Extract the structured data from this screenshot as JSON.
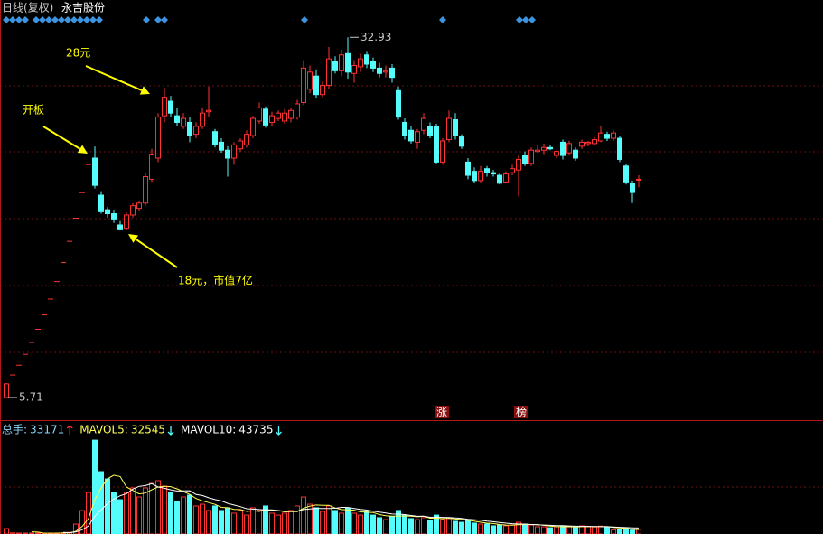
{
  "header": {
    "period": "日线(复权)",
    "name": "永吉股份"
  },
  "chart_data": {
    "type": "candlestick",
    "open": [
      5.71,
      7.41,
      8.15,
      8.97,
      9.87,
      10.86,
      11.95,
      13.15,
      14.47,
      15.92,
      17.51,
      19.26,
      21.19,
      23.31,
      23.8,
      21.0,
      19.9,
      19.6,
      18.75,
      18.5,
      19.5,
      20.0,
      20.4,
      22.2,
      23.8,
      27.0,
      28.1,
      27.0,
      26.2,
      26.5,
      25.6,
      26.2,
      27.3,
      25.8,
      25.0,
      24.4,
      23.8,
      24.5,
      24.8,
      25.5,
      26.6,
      27.5,
      26.5,
      26.8,
      26.6,
      26.8,
      26.9,
      28.0,
      29.0,
      30.0,
      28.6,
      29.3,
      31.1,
      30.4,
      31.7,
      30.2,
      30.7,
      31.6,
      31.1,
      30.6,
      30.3,
      30.6,
      28.9,
      26.5,
      25.9,
      25.0,
      25.9,
      26.2,
      26.2,
      23.5,
      25.2,
      26.7,
      25.4,
      23.5,
      22.8,
      22.1,
      23.0,
      22.7,
      22.5,
      22.0,
      22.7,
      22.9,
      24.0,
      23.4,
      24.3,
      24.4,
      24.6,
      24.0,
      25.0,
      24.2,
      24.4,
      24.7,
      24.9,
      24.9,
      25.1,
      25.6,
      25.3,
      25.3,
      23.2,
      21.9,
      22.2
    ],
    "high": [
      6.8,
      7.41,
      8.15,
      8.97,
      9.87,
      10.86,
      11.95,
      13.15,
      14.47,
      15.92,
      17.51,
      19.26,
      21.19,
      23.31,
      24.68,
      21.3,
      20.1,
      19.9,
      19.05,
      19.7,
      20.4,
      20.6,
      22.7,
      24.5,
      27.2,
      29.1,
      28.5,
      27.6,
      27.2,
      26.9,
      26.5,
      27.6,
      29.2,
      26.0,
      25.3,
      24.7,
      25.0,
      25.3,
      25.9,
      27.0,
      28.0,
      27.7,
      27.3,
      27.4,
      27.5,
      27.6,
      28.2,
      31.2,
      30.8,
      30.5,
      29.6,
      32.2,
      31.5,
      32.0,
      32.93,
      31.2,
      31.7,
      31.9,
      31.4,
      31.0,
      30.8,
      30.9,
      29.2,
      26.8,
      26.2,
      26.0,
      27.2,
      26.5,
      26.4,
      25.3,
      27.4,
      27.2,
      25.6,
      23.8,
      23.1,
      23.2,
      23.2,
      22.9,
      22.7,
      22.8,
      23.3,
      24.0,
      24.3,
      24.6,
      24.8,
      24.9,
      24.8,
      24.4,
      25.2,
      25.1,
      24.6,
      25.2,
      25.1,
      25.4,
      26.2,
      25.8,
      25.9,
      25.5,
      23.4,
      22.1,
      22.5
    ],
    "low": [
      5.71,
      7.41,
      8.15,
      8.97,
      9.87,
      10.86,
      11.95,
      13.15,
      14.47,
      15.92,
      17.51,
      19.26,
      21.19,
      23.31,
      21.5,
      19.6,
      19.3,
      18.9,
      18.33,
      18.4,
      19.3,
      19.8,
      20.2,
      22.0,
      23.5,
      26.5,
      26.9,
      26.2,
      26.0,
      25.0,
      25.3,
      26.0,
      26.9,
      24.6,
      24.2,
      22.4,
      23.3,
      24.3,
      24.6,
      25.3,
      26.4,
      26.1,
      26.2,
      26.6,
      26.4,
      26.5,
      26.7,
      27.8,
      28.7,
      28.3,
      28.4,
      29.0,
      30.2,
      30.0,
      29.8,
      29.5,
      30.3,
      30.6,
      30.3,
      29.9,
      29.9,
      29.5,
      26.7,
      25.2,
      24.9,
      24.5,
      25.6,
      25.3,
      23.4,
      23.3,
      25.0,
      25.2,
      24.5,
      22.2,
      21.9,
      21.9,
      22.4,
      22.4,
      21.8,
      21.9,
      22.5,
      20.9,
      23.2,
      23.2,
      24.2,
      24.1,
      24.4,
      23.8,
      23.7,
      24.0,
      23.6,
      24.5,
      24.7,
      24.8,
      25.0,
      25.1,
      25.1,
      23.5,
      21.8,
      20.4,
      21.6
    ],
    "close": [
      6.74,
      7.41,
      8.15,
      8.97,
      9.87,
      10.86,
      11.95,
      13.15,
      14.47,
      15.92,
      17.51,
      19.26,
      21.19,
      23.31,
      21.74,
      19.75,
      19.6,
      19.2,
      18.45,
      19.5,
      20.2,
      20.4,
      22.4,
      24.1,
      26.9,
      28.4,
      27.2,
      26.5,
      26.8,
      25.5,
      26.2,
      27.2,
      27.4,
      24.8,
      24.4,
      23.8,
      24.8,
      25.1,
      25.6,
      26.8,
      27.6,
      26.3,
      27.0,
      27.2,
      27.2,
      27.4,
      27.9,
      30.6,
      30.3,
      28.6,
      29.3,
      31.3,
      30.4,
      31.6,
      30.3,
      30.8,
      31.3,
      30.9,
      30.6,
      30.2,
      30.4,
      29.9,
      26.9,
      25.5,
      25.1,
      25.8,
      26.8,
      25.5,
      23.5,
      25.1,
      26.8,
      25.5,
      24.7,
      22.5,
      22.1,
      22.8,
      22.7,
      22.6,
      21.9,
      22.6,
      23.0,
      23.7,
      23.4,
      24.4,
      24.4,
      24.6,
      24.5,
      24.3,
      24.0,
      24.9,
      23.8,
      25.0,
      25.0,
      25.2,
      25.7,
      25.3,
      25.7,
      23.7,
      22.0,
      21.2,
      22.2
    ],
    "ylim": [
      4.0,
      33.7
    ],
    "up_color": "#ff3232",
    "down_color": "#54fcfc",
    "annotations": [
      {
        "text": "开板"
      },
      {
        "text": "28元"
      },
      {
        "text": "18元，市值7亿"
      }
    ],
    "events": [
      "涨",
      "榜"
    ],
    "volume": {
      "name": "总手:",
      "ylim": [
        0,
        830000
      ],
      "values": [
        40000,
        8000,
        6000,
        5000,
        5000,
        6000,
        5000,
        6000,
        7000,
        9000,
        12000,
        73000,
        172000,
        305000,
        690000,
        458000,
        405000,
        305000,
        252000,
        305000,
        339000,
        272000,
        339000,
        372000,
        392000,
        352000,
        305000,
        239000,
        272000,
        285000,
        206000,
        219000,
        173000,
        206000,
        173000,
        193000,
        153000,
        173000,
        139000,
        193000,
        173000,
        206000,
        153000,
        139000,
        153000,
        173000,
        206000,
        272000,
        219000,
        193000,
        166000,
        206000,
        173000,
        153000,
        193000,
        153000,
        139000,
        166000,
        139000,
        120000,
        106000,
        126000,
        173000,
        139000,
        113000,
        106000,
        120000,
        100000,
        139000,
        106000,
        113000,
        93000,
        86000,
        100000,
        80000,
        73000,
        73000,
        60000,
        66000,
        60000,
        66000,
        86000,
        73000,
        66000,
        53000,
        53000,
        46000,
        53000,
        60000,
        53000,
        46000,
        60000,
        55000,
        52000,
        58000,
        48000,
        31000,
        36000,
        34000,
        28000,
        33171
      ],
      "series": [
        {
          "name": "MAVOL5:",
          "color": "#ffff54",
          "values": [
            null,
            null,
            null,
            null,
            16000,
            14000,
            6000,
            6000,
            6000,
            7000,
            8000,
            20000,
            55000,
            114000,
            252000,
            340000,
            406000,
            432000,
            422000,
            345000,
            321000,
            295000,
            301000,
            325000,
            345000,
            350000,
            348000,
            332000,
            312000,
            291000,
            261000,
            244000,
            231000,
            218000,
            196000,
            193000,
            181000,
            180000,
            166000,
            170000,
            166000,
            177000,
            173000,
            173000,
            163000,
            165000,
            165000,
            189000,
            205000,
            213000,
            211000,
            211000,
            191000,
            180000,
            178000,
            175000,
            163000,
            160000,
            158000,
            143000,
            134000,
            131000,
            132000,
            133000,
            131000,
            127000,
            130000,
            116000,
            116000,
            113000,
            116000,
            110000,
            107000,
            100000,
            94000,
            86000,
            80000,
            77000,
            70000,
            66000,
            65000,
            68000,
            70000,
            70000,
            69000,
            64000,
            58000,
            54000,
            53000,
            53000,
            52000,
            54000,
            55000,
            54000,
            54000,
            54600,
            48800,
            45000,
            41400,
            35400,
            32545
          ]
        },
        {
          "name": "MAVOL10:",
          "color": "#ffffff",
          "values": [
            null,
            null,
            null,
            null,
            null,
            null,
            null,
            null,
            null,
            12000,
            10000,
            15000,
            31000,
            60000,
            131000,
            177000,
            224000,
            256000,
            281000,
            296000,
            330000,
            350000,
            356000,
            370000,
            345000,
            336000,
            325000,
            316000,
            317000,
            318000,
            290000,
            283000,
            266000,
            253000,
            244000,
            225000,
            213000,
            201000,
            186000,
            183000,
            180000,
            178000,
            177000,
            172000,
            168000,
            168000,
            168000,
            180000,
            184000,
            188000,
            188000,
            188000,
            189000,
            196000,
            195000,
            188000,
            181000,
            176000,
            168000,
            161000,
            155000,
            147000,
            146000,
            143000,
            136000,
            130000,
            131000,
            123000,
            124000,
            122000,
            121000,
            118000,
            115000,
            108000,
            105000,
            101000,
            95000,
            90000,
            85000,
            80000,
            76000,
            74000,
            73000,
            70000,
            67000,
            66000,
            64000,
            62000,
            61000,
            59000,
            57000,
            56000,
            56000,
            55000,
            54000,
            53000,
            51000,
            49000,
            47000,
            45000,
            43735
          ]
        }
      ]
    }
  }
}
